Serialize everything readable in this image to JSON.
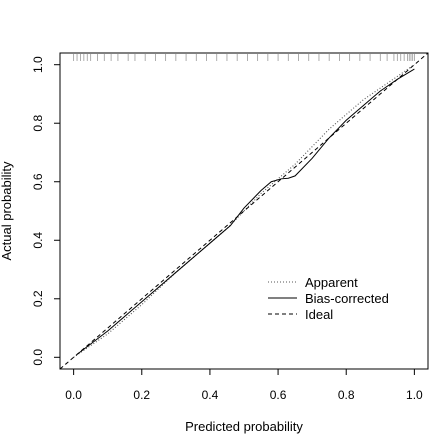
{
  "chart_data": {
    "type": "line",
    "title": "",
    "xlabel": "Predicted probability",
    "ylabel": "Actual probability",
    "xlim": [
      -0.04,
      1.04
    ],
    "ylim": [
      -0.04,
      1.04
    ],
    "x_ticks": [
      0.0,
      0.2,
      0.4,
      0.6,
      0.8,
      1.0
    ],
    "x_tick_labels": [
      "0.0",
      "0.2",
      "0.4",
      "0.6",
      "0.8",
      "1.0"
    ],
    "y_ticks": [
      0.0,
      0.2,
      0.4,
      0.6,
      0.8,
      1.0
    ],
    "y_tick_labels": [
      "0.0",
      "0.2",
      "0.4",
      "0.6",
      "0.8",
      "1.0"
    ],
    "grid": false,
    "legend_position": "bottom-right",
    "series": [
      {
        "name": "Apparent",
        "style": "dotted",
        "color": "#555555",
        "x": [
          0.0,
          0.1,
          0.2,
          0.3,
          0.4,
          0.45,
          0.5,
          0.55,
          0.6,
          0.65,
          0.7,
          0.75,
          0.8,
          0.85,
          0.9,
          0.95,
          1.0
        ],
        "y": [
          0.0,
          0.08,
          0.18,
          0.29,
          0.39,
          0.44,
          0.5,
          0.56,
          0.61,
          0.66,
          0.72,
          0.78,
          0.83,
          0.88,
          0.92,
          0.96,
          1.0
        ]
      },
      {
        "name": "Bias-corrected",
        "style": "solid",
        "color": "#000000",
        "x": [
          0.01,
          0.1,
          0.2,
          0.3,
          0.4,
          0.46,
          0.5,
          0.55,
          0.58,
          0.61,
          0.63,
          0.65,
          0.7,
          0.75,
          0.8,
          0.85,
          0.9,
          0.95,
          1.0
        ],
        "y": [
          0.01,
          0.09,
          0.19,
          0.29,
          0.39,
          0.45,
          0.51,
          0.57,
          0.6,
          0.61,
          0.612,
          0.62,
          0.68,
          0.75,
          0.81,
          0.86,
          0.91,
          0.95,
          0.985
        ]
      },
      {
        "name": "Ideal",
        "style": "dashed",
        "color": "#000000",
        "x": [
          -0.04,
          1.04
        ],
        "y": [
          -0.04,
          1.04
        ]
      }
    ],
    "rug": {
      "color": "#999999",
      "x": [
        0.0,
        0.01,
        0.02,
        0.03,
        0.04,
        0.05,
        0.07,
        0.09,
        0.11,
        0.13,
        0.16,
        0.18,
        0.21,
        0.24,
        0.27,
        0.3,
        0.33,
        0.36,
        0.39,
        0.42,
        0.45,
        0.48,
        0.51,
        0.54,
        0.57,
        0.6,
        0.63,
        0.66,
        0.69,
        0.72,
        0.75,
        0.78,
        0.81,
        0.84,
        0.87,
        0.9,
        0.92,
        0.94,
        0.95,
        0.96,
        0.97,
        0.98,
        0.985,
        0.99,
        0.995,
        1.0
      ]
    }
  }
}
